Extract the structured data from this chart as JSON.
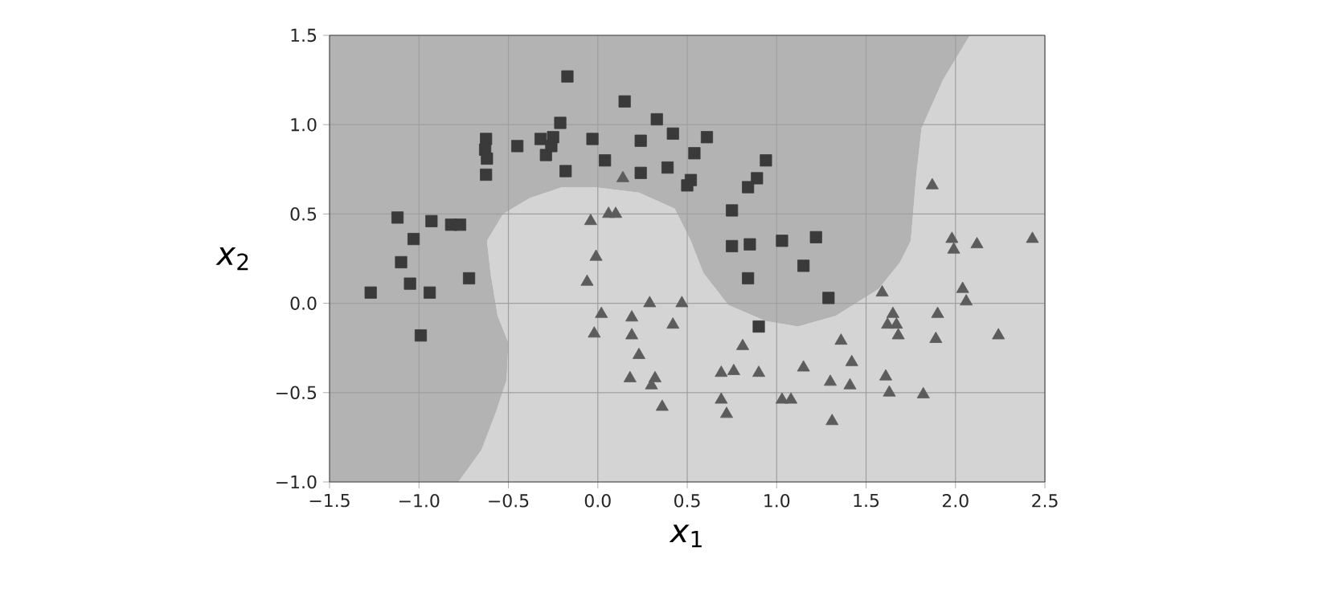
{
  "chart_data": {
    "type": "scatter",
    "xlabel": "*x*$_{1}$",
    "ylabel": "*x*$_{2}$",
    "xlim": [
      -1.5,
      2.5
    ],
    "ylim": [
      -1.0,
      1.5
    ],
    "grid": true,
    "xticks": [
      {
        "value": -1.5,
        "label": "−1.5"
      },
      {
        "value": -1.0,
        "label": "−1.0"
      },
      {
        "value": -0.5,
        "label": "−0.5"
      },
      {
        "value": 0.0,
        "label": "0.0"
      },
      {
        "value": 0.5,
        "label": "0.5"
      },
      {
        "value": 1.0,
        "label": "1.0"
      },
      {
        "value": 1.5,
        "label": "1.5"
      },
      {
        "value": 2.0,
        "label": "2.0"
      },
      {
        "value": 2.5,
        "label": "2.5"
      }
    ],
    "yticks": [
      {
        "value": -1.0,
        "label": "−1.0"
      },
      {
        "value": -0.5,
        "label": "−0.5"
      },
      {
        "value": 0.0,
        "label": "0.0"
      },
      {
        "value": 0.5,
        "label": "0.5"
      },
      {
        "value": 1.0,
        "label": "1.0"
      },
      {
        "value": 1.5,
        "label": "1.5"
      }
    ],
    "series": [
      {
        "type": "area",
        "color": "#d4d4d4",
        "x": [
          -0.78,
          -0.65,
          -0.57,
          -0.51,
          -0.5,
          -0.56,
          -0.6,
          -0.62,
          -0.53,
          -0.38,
          -0.2,
          -0.02,
          0.23,
          0.43,
          0.52,
          0.59,
          0.73,
          0.94,
          1.12,
          1.33,
          1.57,
          1.69,
          1.75,
          1.78,
          1.81,
          1.93,
          2.08,
          2.5,
          2.5
        ],
        "values": [
          -1.0,
          -0.82,
          -0.61,
          -0.43,
          -0.22,
          -0.07,
          0.17,
          0.35,
          0.5,
          0.59,
          0.65,
          0.65,
          0.62,
          0.53,
          0.35,
          0.17,
          -0.01,
          -0.1,
          -0.13,
          -0.07,
          0.08,
          0.23,
          0.35,
          0.71,
          0.98,
          1.25,
          1.5,
          1.5,
          -1.0
        ]
      },
      {
        "type": "area",
        "color": "#b3b3b3",
        "x": [
          -1.5,
          -1.5,
          2.08,
          1.93,
          1.81,
          1.78,
          1.75,
          1.69,
          1.57,
          1.33,
          1.12,
          0.94,
          0.73,
          0.59,
          0.52,
          0.43,
          0.23,
          -0.02,
          -0.2,
          -0.38,
          -0.53,
          -0.62,
          -0.6,
          -0.56,
          -0.5,
          -0.51,
          -0.57,
          -0.65,
          -0.78
        ],
        "values": [
          -1.0,
          1.5,
          1.5,
          1.25,
          0.98,
          0.71,
          0.35,
          0.23,
          0.08,
          -0.07,
          -0.13,
          -0.1,
          -0.01,
          0.17,
          0.35,
          0.53,
          0.62,
          0.65,
          0.65,
          0.59,
          0.5,
          0.35,
          0.17,
          -0.07,
          -0.22,
          -0.43,
          -0.61,
          -0.82,
          -1.0
        ]
      },
      {
        "marker": "square",
        "color": "#3a3a3a",
        "x": [
          -1.27,
          -1.12,
          -1.1,
          -1.05,
          -1.03,
          -0.99,
          -0.94,
          -0.93,
          -0.82,
          -0.77,
          -0.72,
          -0.625,
          -0.63,
          -0.62,
          -0.625,
          -0.45,
          -0.32,
          -0.29,
          -0.26,
          -0.25,
          -0.21,
          -0.18,
          -0.17,
          -0.03,
          0.04,
          0.15,
          0.24,
          0.24,
          0.33,
          0.39,
          0.42,
          0.52,
          0.5,
          0.54,
          0.61,
          0.94,
          0.89,
          0.84,
          0.75,
          0.75,
          0.85,
          1.03,
          1.22,
          1.15,
          0.84,
          1.29,
          0.9
        ],
        "values": [
          0.06,
          0.48,
          0.23,
          0.11,
          0.36,
          -0.18,
          0.06,
          0.46,
          0.44,
          0.44,
          0.14,
          0.92,
          0.86,
          0.81,
          0.72,
          0.88,
          0.92,
          0.83,
          0.88,
          0.93,
          1.01,
          0.74,
          1.27,
          0.92,
          0.8,
          1.13,
          0.91,
          0.73,
          1.03,
          0.76,
          0.95,
          0.69,
          0.66,
          0.84,
          0.93,
          0.8,
          0.7,
          0.65,
          0.52,
          0.32,
          0.33,
          0.35,
          0.37,
          0.21,
          0.14,
          0.03,
          -0.13
        ]
      },
      {
        "marker": "triangle",
        "color": "#5c5c5c",
        "x": [
          -0.01,
          -0.06,
          0.02,
          -0.02,
          0.19,
          0.29,
          0.19,
          0.23,
          0.47,
          0.42,
          0.18,
          0.32,
          0.3,
          0.36,
          0.14,
          -0.04,
          0.06,
          0.1,
          1.87,
          1.98,
          1.99,
          2.12,
          2.43,
          1.59,
          2.04,
          2.06,
          1.65,
          1.62,
          1.67,
          1.68,
          1.9,
          1.89,
          2.24,
          0.81,
          1.36,
          0.69,
          0.76,
          0.9,
          1.15,
          1.42,
          1.3,
          1.41,
          1.61,
          1.63,
          1.82,
          0.69,
          0.72,
          1.03,
          1.08,
          1.31
        ],
        "values": [
          0.26,
          0.12,
          -0.06,
          -0.17,
          -0.08,
          0.0,
          -0.18,
          -0.29,
          0.0,
          -0.12,
          -0.42,
          -0.42,
          -0.46,
          -0.58,
          0.7,
          0.46,
          0.5,
          0.5,
          0.66,
          0.36,
          0.3,
          0.33,
          0.36,
          0.06,
          0.08,
          0.01,
          -0.06,
          -0.12,
          -0.12,
          -0.18,
          -0.06,
          -0.2,
          -0.18,
          -0.24,
          -0.21,
          -0.39,
          -0.38,
          -0.39,
          -0.36,
          -0.33,
          -0.44,
          -0.46,
          -0.41,
          -0.5,
          -0.51,
          -0.54,
          -0.62,
          -0.54,
          -0.54,
          -0.66
        ]
      }
    ]
  }
}
